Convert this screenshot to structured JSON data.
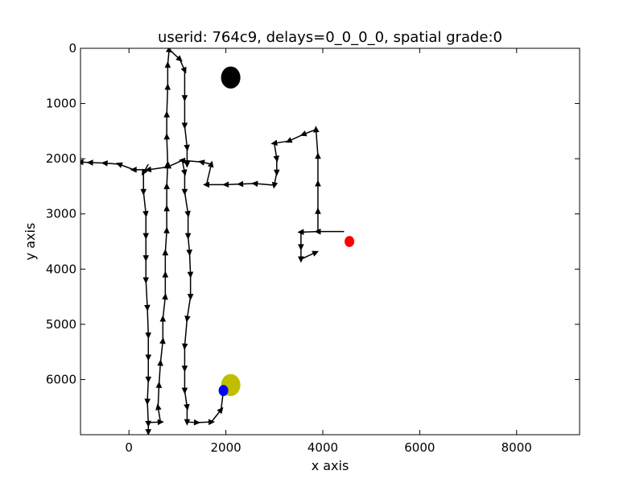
{
  "chart_data": {
    "type": "line",
    "title": "userid: 764c9, delays=0_0_0_0, spatial grade:0",
    "xlabel": "x axis",
    "ylabel": "y axis",
    "xlim": [
      -1000,
      9300
    ],
    "ylim": [
      7000,
      0
    ],
    "y_inverted": true,
    "grid": false,
    "xticks": [
      0,
      2000,
      4000,
      6000,
      8000
    ],
    "yticks": [
      0,
      1000,
      2000,
      3000,
      4000,
      5000,
      6000
    ],
    "series": [
      {
        "style": "black line with triangle direction markers",
        "color": "#000000",
        "points": [
          [
            4440,
            3320
          ],
          [
            3900,
            3320
          ],
          [
            3900,
            2950
          ],
          [
            3900,
            2450
          ],
          [
            3900,
            1950
          ],
          [
            3860,
            1470
          ],
          [
            3600,
            1560
          ],
          [
            3300,
            1680
          ],
          [
            3000,
            1720
          ],
          [
            3050,
            2000
          ],
          [
            3050,
            2250
          ],
          [
            3000,
            2480
          ],
          [
            2600,
            2450
          ],
          [
            2300,
            2460
          ],
          [
            2000,
            2470
          ],
          [
            1600,
            2470
          ],
          [
            1700,
            2100
          ],
          [
            1500,
            2060
          ],
          [
            1100,
            2030
          ],
          [
            1150,
            2250
          ],
          [
            1150,
            2600
          ],
          [
            1220,
            3000
          ],
          [
            1220,
            3400
          ],
          [
            1250,
            3700
          ],
          [
            1270,
            4100
          ],
          [
            1270,
            4500
          ],
          [
            1200,
            4900
          ],
          [
            1150,
            5400
          ],
          [
            1150,
            5800
          ],
          [
            1150,
            6200
          ],
          [
            1200,
            6500
          ],
          [
            1200,
            6770
          ],
          [
            1400,
            6780
          ],
          [
            1700,
            6770
          ],
          [
            1900,
            6550
          ],
          [
            1950,
            6200
          ]
        ]
      },
      {
        "style": "black line with triangle direction markers",
        "color": "#000000",
        "points": [
          [
            3900,
            3320
          ],
          [
            3550,
            3330
          ],
          [
            3550,
            3600
          ],
          [
            3550,
            3820
          ],
          [
            3850,
            3700
          ]
        ]
      },
      {
        "style": "black line with triangle direction markers",
        "color": "#000000",
        "points": [
          [
            1100,
            2030
          ],
          [
            800,
            2150
          ],
          [
            400,
            2200
          ],
          [
            100,
            2200
          ],
          [
            -200,
            2100
          ],
          [
            -500,
            2080
          ],
          [
            -800,
            2070
          ],
          [
            -1000,
            2060
          ]
        ]
      },
      {
        "style": "black line with triangle direction markers",
        "color": "#000000",
        "points": [
          [
            400,
            2100
          ],
          [
            300,
            2250
          ],
          [
            300,
            2600
          ],
          [
            350,
            3000
          ],
          [
            350,
            3400
          ],
          [
            350,
            3800
          ],
          [
            350,
            4200
          ],
          [
            380,
            4700
          ],
          [
            400,
            5200
          ],
          [
            400,
            5600
          ],
          [
            400,
            6000
          ],
          [
            380,
            6400
          ],
          [
            400,
            6800
          ],
          [
            400,
            6950
          ]
        ]
      },
      {
        "style": "black line with triangle direction markers",
        "color": "#000000",
        "points": [
          [
            400,
            6780
          ],
          [
            650,
            6770
          ],
          [
            600,
            6500
          ],
          [
            620,
            6100
          ],
          [
            650,
            5700
          ],
          [
            700,
            5300
          ],
          [
            700,
            4900
          ],
          [
            750,
            4500
          ],
          [
            750,
            4100
          ],
          [
            750,
            3700
          ],
          [
            780,
            3300
          ],
          [
            780,
            2900
          ],
          [
            780,
            2500
          ],
          [
            800,
            2100
          ],
          [
            780,
            1600
          ],
          [
            780,
            1200
          ],
          [
            800,
            700
          ],
          [
            800,
            300
          ],
          [
            830,
            20
          ],
          [
            1050,
            200
          ],
          [
            1150,
            400
          ],
          [
            1150,
            900
          ],
          [
            1150,
            1400
          ],
          [
            1200,
            1800
          ],
          [
            1200,
            2100
          ]
        ]
      }
    ],
    "markers": [
      {
        "name": "black circle",
        "x": 2100,
        "y": 530,
        "rx": 200,
        "ry": 200,
        "color": "#000000"
      },
      {
        "name": "yellow circle",
        "x": 2100,
        "y": 6100,
        "rx": 200,
        "ry": 200,
        "color": "#bfbf00"
      },
      {
        "name": "blue circle",
        "x": 1950,
        "y": 6200,
        "rx": 100,
        "ry": 100,
        "color": "#0000ff"
      },
      {
        "name": "red circle",
        "x": 4550,
        "y": 3500,
        "rx": 100,
        "ry": 100,
        "color": "#ff0000"
      }
    ]
  }
}
